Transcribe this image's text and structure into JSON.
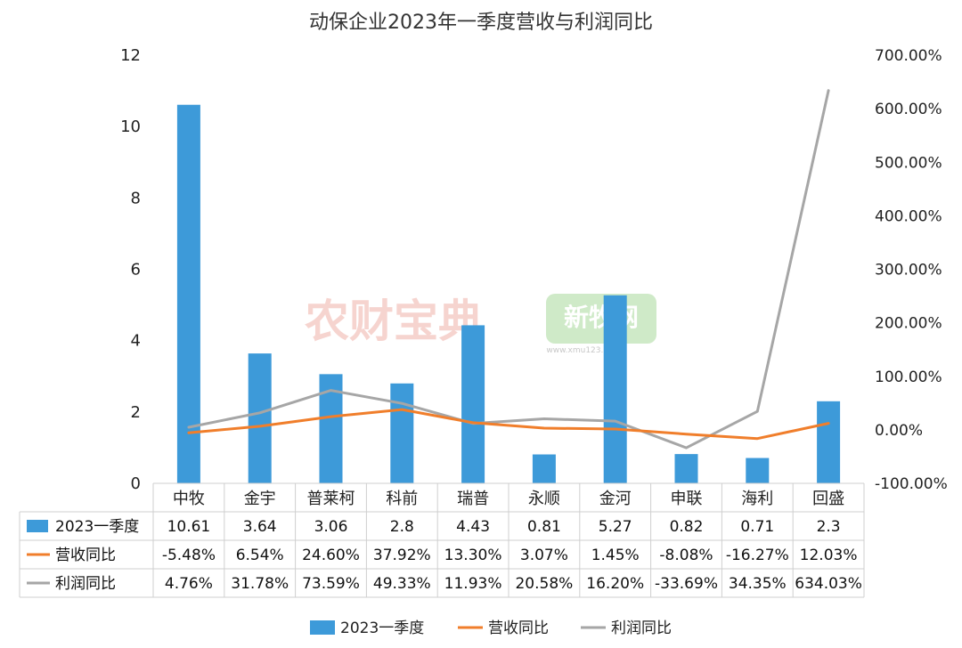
{
  "chart_data": {
    "type": "bar",
    "title": "动保企业2023年一季度营收与利润同比",
    "categories": [
      "中牧",
      "金宇",
      "普莱柯",
      "科前",
      "瑞普",
      "永顺",
      "金河",
      "申联",
      "海利",
      "回盛"
    ],
    "y_left": {
      "min": 0,
      "max": 12,
      "ticks": [
        "0",
        "2",
        "4",
        "6",
        "8",
        "10",
        "12"
      ],
      "tick_values": [
        0,
        2,
        4,
        6,
        8,
        10,
        12
      ]
    },
    "y_right": {
      "min": -100,
      "max": 700,
      "ticks": [
        "-100.00%",
        "0.00%",
        "100.00%",
        "200.00%",
        "300.00%",
        "400.00%",
        "500.00%",
        "600.00%",
        "700.00%"
      ],
      "tick_values": [
        -100,
        0,
        100,
        200,
        300,
        400,
        500,
        600,
        700
      ]
    },
    "series": [
      {
        "name": "2023一季度",
        "kind": "bar",
        "axis": "left",
        "color": "#3d9ad9",
        "values": [
          10.61,
          3.64,
          3.06,
          2.8,
          4.43,
          0.81,
          5.27,
          0.82,
          0.71,
          2.3
        ],
        "labels": [
          "10.61",
          "3.64",
          "3.06",
          "2.8",
          "4.43",
          "0.81",
          "5.27",
          "0.82",
          "0.71",
          "2.3"
        ]
      },
      {
        "name": "营收同比",
        "kind": "line",
        "axis": "right",
        "color": "#f07e2b",
        "values": [
          -5.48,
          6.54,
          24.6,
          37.92,
          13.3,
          3.07,
          1.45,
          -8.08,
          -16.27,
          12.03
        ],
        "labels": [
          "-5.48%",
          "6.54%",
          "24.60%",
          "37.92%",
          "13.30%",
          "3.07%",
          "1.45%",
          "-8.08%",
          "-16.27%",
          "12.03%"
        ]
      },
      {
        "name": "利润同比",
        "kind": "line",
        "axis": "right",
        "color": "#a6a6a6",
        "values": [
          4.76,
          31.78,
          73.59,
          49.33,
          11.93,
          20.58,
          16.2,
          -33.69,
          34.35,
          634.03
        ],
        "labels": [
          "4.76%",
          "31.78%",
          "73.59%",
          "49.33%",
          "11.93%",
          "20.58%",
          "16.20%",
          "-33.69%",
          "34.35%",
          "634.03%"
        ]
      }
    ],
    "legend_position": "bottom",
    "data_table": true
  },
  "watermarks": [
    "农财宝典",
    "新牧网",
    "www.xmu123.com"
  ]
}
